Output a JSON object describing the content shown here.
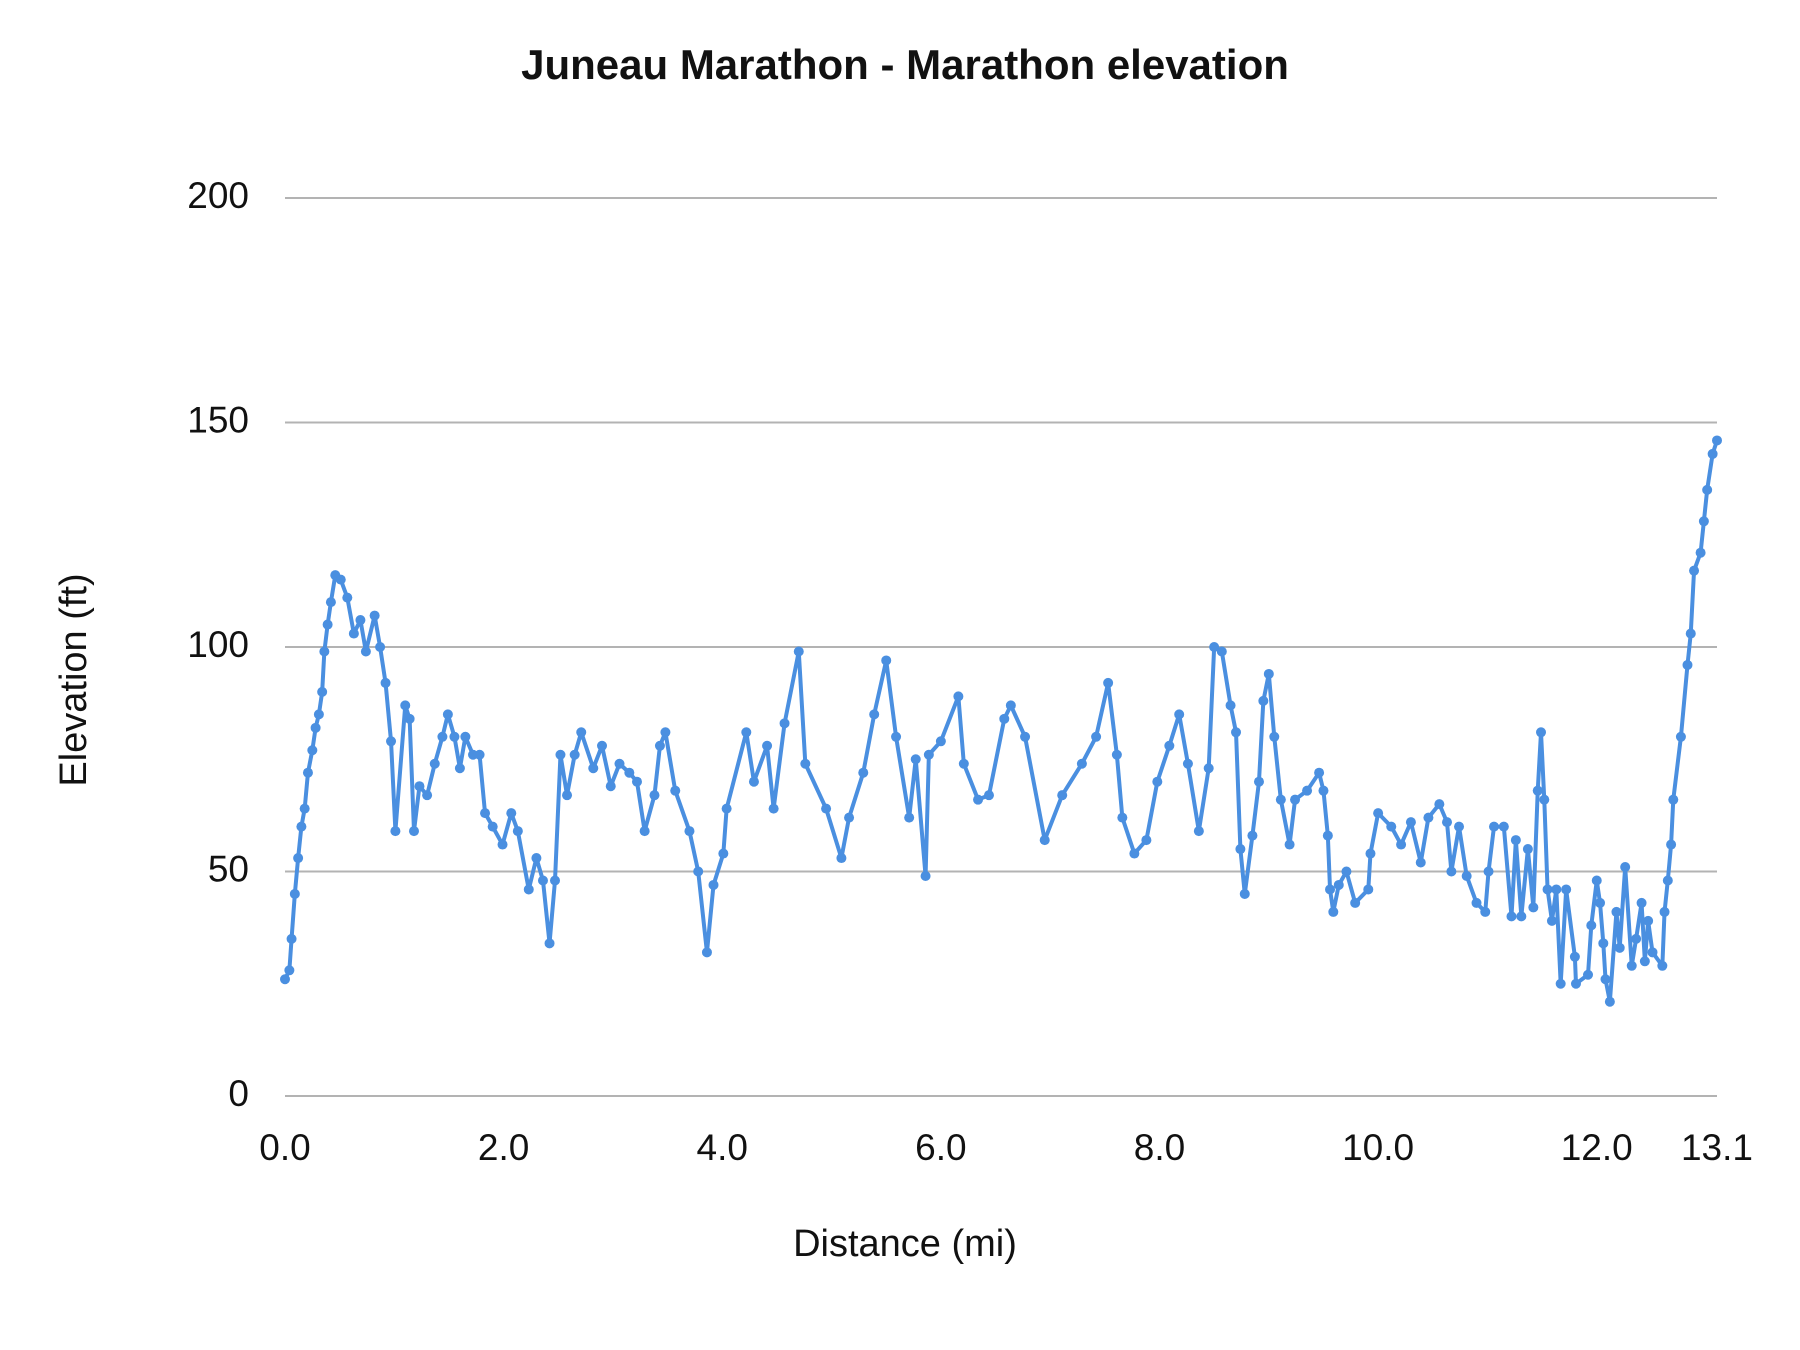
{
  "chart_data": {
    "type": "line",
    "title": "Juneau Marathon - Marathon elevation",
    "x_label": "Distance (mi)",
    "y_label": "Elevation (ft)",
    "color": "#4a8fe0",
    "markers": true,
    "grid": true,
    "xlim": [
      0,
      13.1
    ],
    "ylim": [
      0,
      200
    ],
    "xticks": [
      {
        "value": 0,
        "label": "0.0"
      },
      {
        "value": 2,
        "label": "2.0"
      },
      {
        "value": 4,
        "label": "4.0"
      },
      {
        "value": 6,
        "label": "6.0"
      },
      {
        "value": 8,
        "label": "8.0"
      },
      {
        "value": 10,
        "label": "10.0"
      },
      {
        "value": 12,
        "label": "12.0"
      },
      {
        "value": 13.1,
        "label": "13.1"
      }
    ],
    "yticks": [
      0,
      50,
      100,
      150,
      200
    ],
    "x": [
      0,
      0.04,
      0.06,
      0.09,
      0.12,
      0.15,
      0.18,
      0.21,
      0.25,
      0.28,
      0.31,
      0.34,
      0.36,
      0.39,
      0.42,
      0.46,
      0.51,
      0.57,
      0.63,
      0.69,
      0.74,
      0.82,
      0.87,
      0.92,
      0.97,
      1.01,
      1.1,
      1.14,
      1.18,
      1.23,
      1.3,
      1.37,
      1.44,
      1.49,
      1.55,
      1.6,
      1.65,
      1.72,
      1.78,
      1.83,
      1.9,
      1.99,
      2.07,
      2.13,
      2.23,
      2.3,
      2.36,
      2.42,
      2.47,
      2.52,
      2.58,
      2.65,
      2.71,
      2.82,
      2.9,
      2.98,
      3.06,
      3.15,
      3.22,
      3.29,
      3.38,
      3.43,
      3.48,
      3.57,
      3.7,
      3.78,
      3.86,
      3.92,
      4.01,
      4.04,
      4.22,
      4.29,
      4.41,
      4.47,
      4.57,
      4.7,
      4.76,
      4.95,
      5.09,
      5.16,
      5.29,
      5.39,
      5.5,
      5.59,
      5.71,
      5.77,
      5.86,
      5.89,
      6.0,
      6.16,
      6.21,
      6.34,
      6.44,
      6.58,
      6.64,
      6.77,
      6.95,
      7.11,
      7.29,
      7.42,
      7.53,
      7.61,
      7.66,
      7.77,
      7.88,
      7.98,
      8.09,
      8.18,
      8.26,
      8.36,
      8.45,
      8.5,
      8.57,
      8.65,
      8.7,
      8.74,
      8.78,
      8.85,
      8.91,
      8.95,
      9.0,
      9.05,
      9.11,
      9.19,
      9.24,
      9.35,
      9.46,
      9.5,
      9.54,
      9.56,
      9.59,
      9.64,
      9.71,
      9.79,
      9.91,
      9.93,
      10.0,
      10.12,
      10.21,
      10.3,
      10.39,
      10.46,
      10.56,
      10.63,
      10.67,
      10.74,
      10.81,
      10.9,
      10.98,
      11.01,
      11.06,
      11.15,
      11.22,
      11.26,
      11.31,
      11.37,
      11.42,
      11.46,
      11.49,
      11.52,
      11.55,
      11.59,
      11.63,
      11.67,
      11.72,
      11.8,
      11.81,
      11.92,
      11.95,
      12.0,
      12.03,
      12.06,
      12.08,
      12.12,
      12.18,
      12.21,
      12.26,
      12.32,
      12.36,
      12.41,
      12.44,
      12.47,
      12.51,
      12.6,
      12.62,
      12.65,
      12.68,
      12.7,
      12.77,
      12.83,
      12.86,
      12.89,
      12.95,
      12.98,
      13.01,
      13.06,
      13.1
    ],
    "values": [
      26,
      28,
      35,
      45,
      53,
      60,
      64,
      72,
      77,
      82,
      85,
      90,
      99,
      105,
      110,
      116,
      115,
      111,
      103,
      106,
      99,
      107,
      100,
      92,
      79,
      59,
      87,
      84,
      59,
      69,
      67,
      74,
      80,
      85,
      80,
      73,
      80,
      76,
      76,
      63,
      60,
      56,
      63,
      59,
      46,
      53,
      48,
      34,
      48,
      76,
      67,
      76,
      81,
      73,
      78,
      69,
      74,
      72,
      70,
      59,
      67,
      78,
      81,
      68,
      59,
      50,
      32,
      47,
      54,
      64,
      81,
      70,
      78,
      64,
      83,
      99,
      74,
      64,
      53,
      62,
      72,
      85,
      97,
      80,
      62,
      75,
      49,
      76,
      79,
      89,
      74,
      66,
      67,
      84,
      87,
      80,
      57,
      67,
      74,
      80,
      92,
      76,
      62,
      54,
      57,
      70,
      78,
      85,
      74,
      59,
      73,
      100,
      99,
      87,
      81,
      55,
      45,
      58,
      70,
      88,
      94,
      80,
      66,
      56,
      66,
      68,
      72,
      68,
      58,
      46,
      41,
      47,
      50,
      43,
      46,
      54,
      63,
      60,
      56,
      61,
      52,
      62,
      65,
      61,
      50,
      60,
      49,
      43,
      41,
      50,
      60,
      60,
      40,
      57,
      40,
      55,
      42,
      68,
      81,
      66,
      46,
      39,
      46,
      25,
      46,
      31,
      25,
      27,
      38,
      48,
      43,
      34,
      26,
      21,
      41,
      33,
      51,
      29,
      35,
      43,
      30,
      39,
      32,
      29,
      41,
      48,
      56,
      66,
      80,
      96,
      103,
      117,
      121,
      128,
      135,
      143,
      146
    ]
  }
}
